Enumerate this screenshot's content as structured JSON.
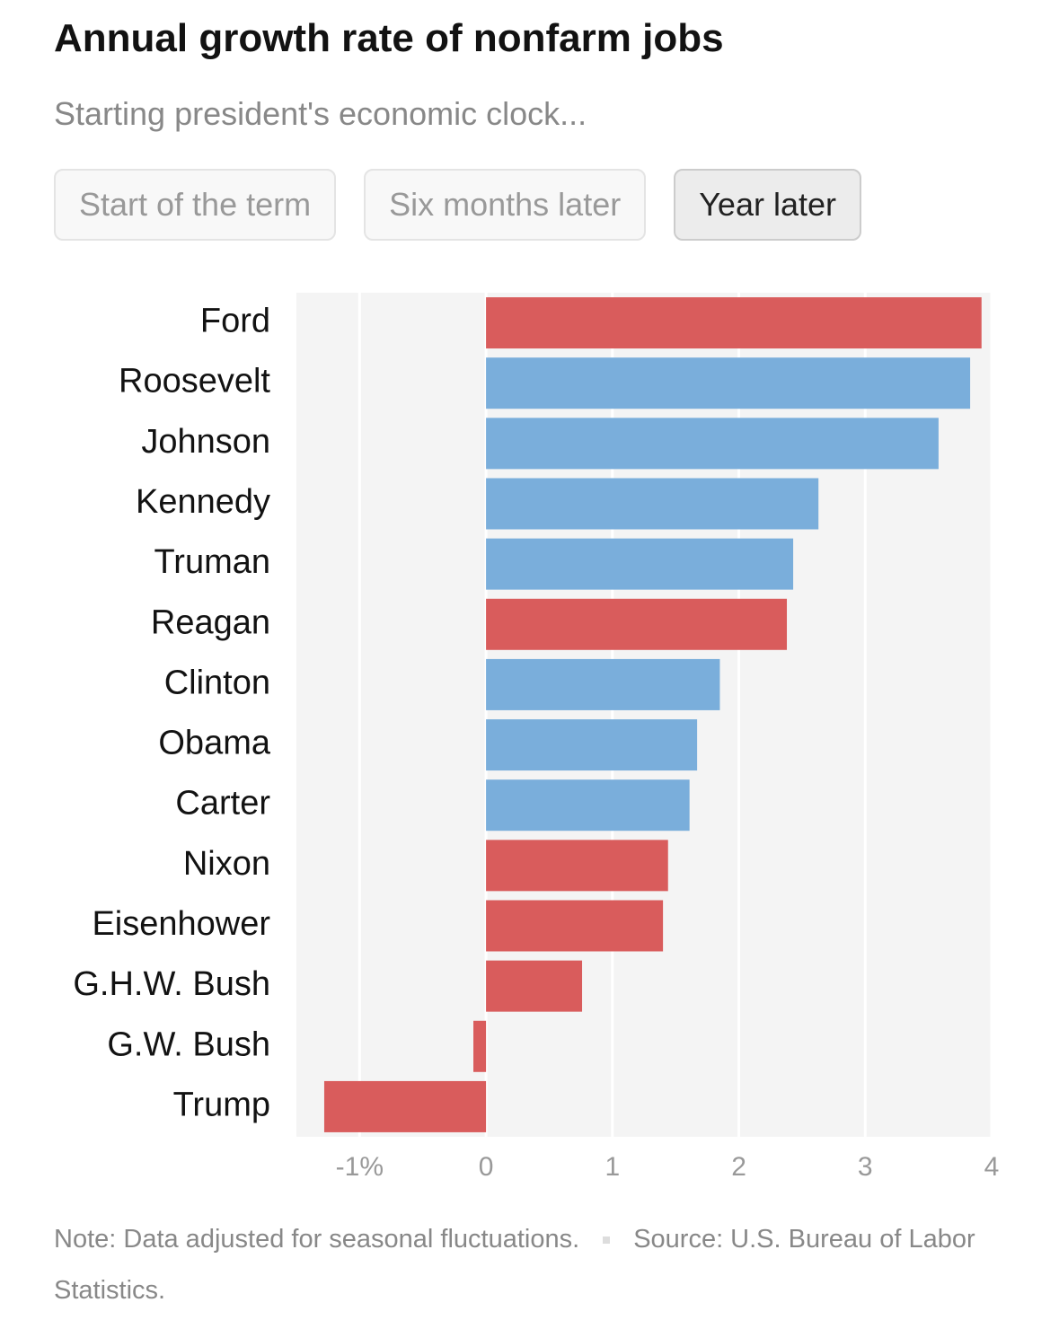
{
  "chart_data": {
    "type": "bar",
    "orientation": "horizontal",
    "title": "Annual growth rate of nonfarm jobs",
    "subtitle": "Starting president's economic clock...",
    "buttons": [
      "Start of the term",
      "Six months later",
      "Year later"
    ],
    "selected_button": 2,
    "categories": [
      "Ford",
      "Roosevelt",
      "Johnson",
      "Kennedy",
      "Truman",
      "Reagan",
      "Clinton",
      "Obama",
      "Carter",
      "Nixon",
      "Eisenhower",
      "G.H.W. Bush",
      "G.W. Bush",
      "Trump"
    ],
    "values": [
      3.92,
      3.83,
      3.58,
      2.63,
      2.43,
      2.38,
      1.85,
      1.67,
      1.61,
      1.44,
      1.4,
      0.76,
      -0.1,
      -1.28
    ],
    "colors": [
      "#d95c5c",
      "#7aaedb",
      "#7aaedb",
      "#7aaedb",
      "#7aaedb",
      "#d95c5c",
      "#7aaedb",
      "#7aaedb",
      "#7aaedb",
      "#d95c5c",
      "#d95c5c",
      "#d95c5c",
      "#d95c5c",
      "#d95c5c"
    ],
    "xlim": [
      -1.5,
      4
    ],
    "xticks": [
      {
        "value": -1,
        "label": "-1%"
      },
      0,
      1,
      2,
      3,
      4
    ],
    "grid": true,
    "note": "Note: Data adjusted for seasonal fluctuations.",
    "source": "Source: U.S. Bureau of Labor Statistics."
  }
}
